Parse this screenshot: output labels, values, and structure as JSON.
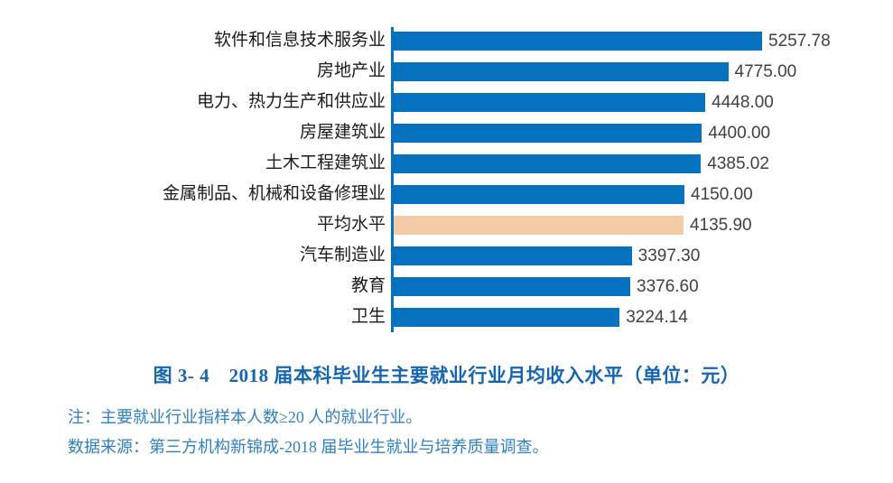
{
  "chart_data": {
    "type": "bar",
    "orientation": "horizontal",
    "title": "图 3- 4　2018 届本科毕业生主要就业行业月均收入水平（单位：元）",
    "categories": [
      "软件和信息技术服务业",
      "房地产业",
      "电力、热力生产和供应业",
      "房屋建筑业",
      "土木工程建筑业",
      "金属制品、机械和设备修理业",
      "平均水平",
      "汽车制造业",
      "教育",
      "卫生"
    ],
    "values": [
      5257.78,
      4775.0,
      4448.0,
      4400.0,
      4385.02,
      4150.0,
      4135.9,
      3397.3,
      3376.6,
      3224.14
    ],
    "value_labels": [
      "5257.78",
      "4775.00",
      "4448.00",
      "4400.00",
      "4385.02",
      "4150.00",
      "4135.90",
      "3397.30",
      "3376.60",
      "3224.14"
    ],
    "highlight_category": "平均水平",
    "xlim": [
      0,
      5257.78
    ],
    "grid": false,
    "legend": "none",
    "bar_color": "#0571BF",
    "highlight_color": "#F5CBA7",
    "axis_color": "#0571BF",
    "value_text_color": "#404040",
    "label_text_color": "#1a1a1a"
  },
  "caption": {
    "text": "图 3- 4　2018 届本科毕业生主要就业行业月均收入水平（单位：元）",
    "color": "#1565B5"
  },
  "notes": {
    "note1": "注：主要就业行业指样本人数≥20 人的就业行业。",
    "note2": "数据来源：第三方机构新锦成-2018 届毕业生就业与培养质量调查。",
    "color": "#2E7FC4"
  }
}
